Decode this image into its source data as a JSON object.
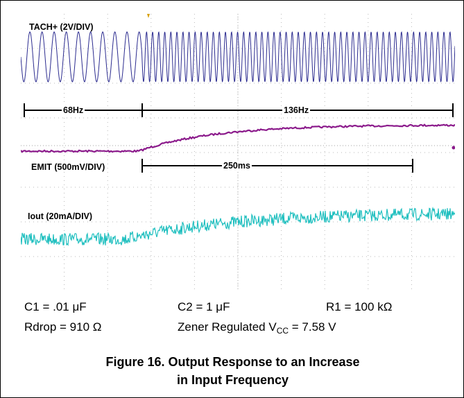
{
  "chart_data": {
    "type": "line",
    "title": "",
    "channels": [
      {
        "name": "TACH+ (2V/DIV)",
        "color": "#2b2b8f"
      },
      {
        "name": "EMIT (500mV/DIV)",
        "color": "#8b1a8b"
      },
      {
        "name": "Iout (20mA/DIV)",
        "color": "#1fbfbf"
      }
    ],
    "annotations": {
      "freq_before": "68Hz",
      "freq_after": "136Hz",
      "settle_time": "250ms"
    },
    "grid": true,
    "divisions": {
      "x": 10,
      "y": 8
    }
  },
  "conditions": {
    "c1": "C1 = .01 μF",
    "c2": "C2 = 1 μF",
    "r1": "R1 = 100 kΩ",
    "rdrop": "Rdrop = 910 Ω",
    "vcc_prefix": "Zener Regulated V",
    "vcc_sub": "CC",
    "vcc_suffix": " = 7.58 V"
  },
  "caption": {
    "line1": "Figure 16. Output Response to an Increase",
    "line2": "in Input Frequency"
  }
}
